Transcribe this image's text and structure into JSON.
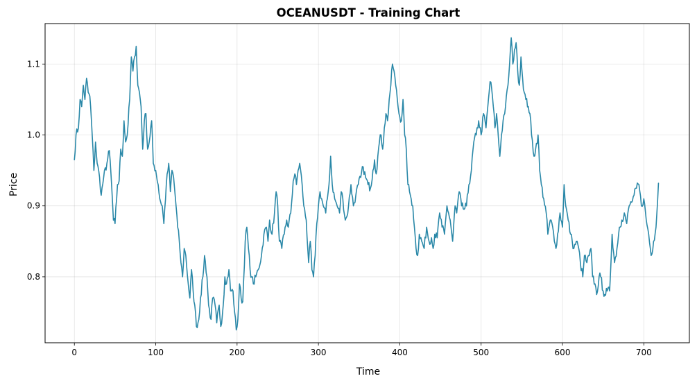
{
  "chart_data": {
    "type": "line",
    "title": "OCEANUSDT - Training Chart",
    "xlabel": "Time",
    "ylabel": "Price",
    "xlim": [
      -36,
      756
    ],
    "ylim": [
      0.707,
      1.157
    ],
    "xticks": [
      0,
      100,
      200,
      300,
      400,
      500,
      600,
      700
    ],
    "yticks": [
      0.8,
      0.9,
      1.0,
      1.1
    ],
    "ytick_labels": [
      "0.8",
      "0.9",
      "1.0",
      "1.1"
    ],
    "grid": true,
    "series": [
      {
        "color": "#2a88a8",
        "anchors": [
          [
            0,
            0.965
          ],
          [
            2,
            1.0
          ],
          [
            5,
            1.01
          ],
          [
            7,
            1.05
          ],
          [
            9,
            1.04
          ],
          [
            11,
            1.07
          ],
          [
            13,
            1.05
          ],
          [
            15,
            1.08
          ],
          [
            17,
            1.06
          ],
          [
            19,
            1.055
          ],
          [
            21,
            1.02
          ],
          [
            24,
            0.95
          ],
          [
            26,
            0.99
          ],
          [
            28,
            0.96
          ],
          [
            31,
            0.94
          ],
          [
            33,
            0.915
          ],
          [
            36,
            0.94
          ],
          [
            40,
            0.96
          ],
          [
            43,
            0.978
          ],
          [
            45,
            0.945
          ],
          [
            48,
            0.88
          ],
          [
            50,
            0.875
          ],
          [
            53,
            0.93
          ],
          [
            55,
            0.935
          ],
          [
            57,
            0.98
          ],
          [
            59,
            0.97
          ],
          [
            61,
            1.02
          ],
          [
            63,
            0.99
          ],
          [
            65,
            1.0
          ],
          [
            68,
            1.05
          ],
          [
            70,
            1.11
          ],
          [
            72,
            1.09
          ],
          [
            74,
            1.11
          ],
          [
            76,
            1.125
          ],
          [
            78,
            1.07
          ],
          [
            80,
            1.06
          ],
          [
            82,
            1.04
          ],
          [
            84,
            0.98
          ],
          [
            86,
            1.02
          ],
          [
            88,
            1.03
          ],
          [
            90,
            0.98
          ],
          [
            92,
            0.99
          ],
          [
            95,
            1.02
          ],
          [
            97,
            0.96
          ],
          [
            100,
            0.95
          ],
          [
            103,
            0.93
          ],
          [
            105,
            0.91
          ],
          [
            108,
            0.9
          ],
          [
            110,
            0.875
          ],
          [
            113,
            0.93
          ],
          [
            116,
            0.96
          ],
          [
            118,
            0.92
          ],
          [
            120,
            0.95
          ],
          [
            122,
            0.94
          ],
          [
            125,
            0.9
          ],
          [
            127,
            0.87
          ],
          [
            129,
            0.85
          ],
          [
            131,
            0.82
          ],
          [
            133,
            0.8
          ],
          [
            135,
            0.84
          ],
          [
            137,
            0.83
          ],
          [
            140,
            0.79
          ],
          [
            142,
            0.77
          ],
          [
            144,
            0.81
          ],
          [
            146,
            0.78
          ],
          [
            148,
            0.76
          ],
          [
            150,
            0.73
          ],
          [
            153,
            0.74
          ],
          [
            155,
            0.77
          ],
          [
            158,
            0.8
          ],
          [
            160,
            0.83
          ],
          [
            163,
            0.8
          ],
          [
            165,
            0.76
          ],
          [
            168,
            0.74
          ],
          [
            170,
            0.77
          ],
          [
            173,
            0.76
          ],
          [
            175,
            0.735
          ],
          [
            178,
            0.76
          ],
          [
            180,
            0.73
          ],
          [
            183,
            0.76
          ],
          [
            185,
            0.8
          ],
          [
            187,
            0.79
          ],
          [
            190,
            0.81
          ],
          [
            192,
            0.78
          ],
          [
            195,
            0.78
          ],
          [
            197,
            0.75
          ],
          [
            199,
            0.725
          ],
          [
            201,
            0.74
          ],
          [
            203,
            0.79
          ],
          [
            205,
            0.77
          ],
          [
            207,
            0.765
          ],
          [
            210,
            0.85
          ],
          [
            212,
            0.87
          ],
          [
            214,
            0.84
          ],
          [
            216,
            0.81
          ],
          [
            218,
            0.8
          ],
          [
            220,
            0.79
          ],
          [
            223,
            0.8
          ],
          [
            226,
            0.81
          ],
          [
            230,
            0.83
          ],
          [
            233,
            0.86
          ],
          [
            236,
            0.87
          ],
          [
            238,
            0.85
          ],
          [
            240,
            0.88
          ],
          [
            243,
            0.86
          ],
          [
            246,
            0.89
          ],
          [
            248,
            0.92
          ],
          [
            250,
            0.9
          ],
          [
            252,
            0.85
          ],
          [
            255,
            0.84
          ],
          [
            258,
            0.86
          ],
          [
            261,
            0.88
          ],
          [
            263,
            0.87
          ],
          [
            266,
            0.89
          ],
          [
            269,
            0.935
          ],
          [
            271,
            0.945
          ],
          [
            273,
            0.93
          ],
          [
            275,
            0.95
          ],
          [
            277,
            0.96
          ],
          [
            280,
            0.93
          ],
          [
            282,
            0.9
          ],
          [
            285,
            0.88
          ],
          [
            288,
            0.82
          ],
          [
            290,
            0.85
          ],
          [
            292,
            0.81
          ],
          [
            294,
            0.8
          ],
          [
            296,
            0.83
          ],
          [
            298,
            0.875
          ],
          [
            300,
            0.9
          ],
          [
            302,
            0.92
          ],
          [
            304,
            0.91
          ],
          [
            306,
            0.9
          ],
          [
            309,
            0.89
          ],
          [
            311,
            0.91
          ],
          [
            313,
            0.93
          ],
          [
            315,
            0.97
          ],
          [
            317,
            0.93
          ],
          [
            320,
            0.91
          ],
          [
            323,
            0.9
          ],
          [
            326,
            0.89
          ],
          [
            328,
            0.92
          ],
          [
            330,
            0.91
          ],
          [
            333,
            0.88
          ],
          [
            335,
            0.885
          ],
          [
            337,
            0.9
          ],
          [
            340,
            0.93
          ],
          [
            343,
            0.9
          ],
          [
            346,
            0.915
          ],
          [
            349,
            0.93
          ],
          [
            352,
            0.94
          ],
          [
            355,
            0.955
          ],
          [
            358,
            0.94
          ],
          [
            361,
            0.93
          ],
          [
            364,
            0.925
          ],
          [
            367,
            0.95
          ],
          [
            369,
            0.965
          ],
          [
            371,
            0.945
          ],
          [
            373,
            0.97
          ],
          [
            375,
            0.99
          ],
          [
            377,
            1.0
          ],
          [
            379,
            0.98
          ],
          [
            381,
            1.01
          ],
          [
            383,
            1.03
          ],
          [
            385,
            1.02
          ],
          [
            387,
            1.05
          ],
          [
            389,
            1.07
          ],
          [
            391,
            1.1
          ],
          [
            393,
            1.09
          ],
          [
            395,
            1.07
          ],
          [
            397,
            1.05
          ],
          [
            399,
            1.03
          ],
          [
            402,
            1.02
          ],
          [
            404,
            1.05
          ],
          [
            406,
            1.0
          ],
          [
            408,
            0.98
          ],
          [
            410,
            0.93
          ],
          [
            412,
            0.92
          ],
          [
            414,
            0.91
          ],
          [
            416,
            0.9
          ],
          [
            418,
            0.87
          ],
          [
            420,
            0.84
          ],
          [
            422,
            0.83
          ],
          [
            424,
            0.86
          ],
          [
            427,
            0.85
          ],
          [
            430,
            0.84
          ],
          [
            433,
            0.87
          ],
          [
            436,
            0.85
          ],
          [
            439,
            0.855
          ],
          [
            441,
            0.84
          ],
          [
            443,
            0.86
          ],
          [
            446,
            0.855
          ],
          [
            449,
            0.89
          ],
          [
            452,
            0.87
          ],
          [
            455,
            0.86
          ],
          [
            458,
            0.9
          ],
          [
            460,
            0.89
          ],
          [
            462,
            0.88
          ],
          [
            465,
            0.85
          ],
          [
            468,
            0.9
          ],
          [
            470,
            0.89
          ],
          [
            473,
            0.92
          ],
          [
            476,
            0.9
          ],
          [
            479,
            0.895
          ],
          [
            482,
            0.9
          ],
          [
            485,
            0.93
          ],
          [
            488,
            0.95
          ],
          [
            491,
            0.99
          ],
          [
            494,
            1.0
          ],
          [
            497,
            1.02
          ],
          [
            500,
            1.0
          ],
          [
            503,
            1.03
          ],
          [
            506,
            1.01
          ],
          [
            509,
            1.05
          ],
          [
            511,
            1.075
          ],
          [
            513,
            1.065
          ],
          [
            515,
            1.04
          ],
          [
            517,
            1.01
          ],
          [
            519,
            1.03
          ],
          [
            521,
            1.0
          ],
          [
            523,
            0.97
          ],
          [
            525,
            1.0
          ],
          [
            527,
            1.02
          ],
          [
            530,
            1.04
          ],
          [
            533,
            1.07
          ],
          [
            535,
            1.1
          ],
          [
            537,
            1.137
          ],
          [
            539,
            1.1
          ],
          [
            541,
            1.12
          ],
          [
            543,
            1.13
          ],
          [
            545,
            1.09
          ],
          [
            547,
            1.07
          ],
          [
            549,
            1.11
          ],
          [
            551,
            1.08
          ],
          [
            553,
            1.06
          ],
          [
            555,
            1.05
          ],
          [
            558,
            1.04
          ],
          [
            560,
            1.03
          ],
          [
            562,
            1.0
          ],
          [
            565,
            0.97
          ],
          [
            567,
            0.98
          ],
          [
            570,
            1.0
          ],
          [
            572,
            0.95
          ],
          [
            574,
            0.93
          ],
          [
            577,
            0.91
          ],
          [
            580,
            0.89
          ],
          [
            582,
            0.86
          ],
          [
            585,
            0.88
          ],
          [
            588,
            0.87
          ],
          [
            590,
            0.85
          ],
          [
            592,
            0.84
          ],
          [
            594,
            0.86
          ],
          [
            597,
            0.89
          ],
          [
            600,
            0.87
          ],
          [
            602,
            0.93
          ],
          [
            604,
            0.9
          ],
          [
            607,
            0.88
          ],
          [
            610,
            0.86
          ],
          [
            612,
            0.85
          ],
          [
            614,
            0.84
          ],
          [
            617,
            0.85
          ],
          [
            620,
            0.84
          ],
          [
            622,
            0.82
          ],
          [
            625,
            0.8
          ],
          [
            627,
            0.83
          ],
          [
            630,
            0.82
          ],
          [
            633,
            0.83
          ],
          [
            635,
            0.84
          ],
          [
            637,
            0.8
          ],
          [
            640,
            0.79
          ],
          [
            642,
            0.775
          ],
          [
            645,
            0.8
          ],
          [
            647,
            0.8
          ],
          [
            650,
            0.78
          ],
          [
            652,
            0.775
          ],
          [
            655,
            0.78
          ],
          [
            658,
            0.78
          ],
          [
            661,
            0.86
          ],
          [
            664,
            0.82
          ],
          [
            667,
            0.84
          ],
          [
            670,
            0.87
          ],
          [
            673,
            0.88
          ],
          [
            676,
            0.89
          ],
          [
            679,
            0.875
          ],
          [
            682,
            0.9
          ],
          [
            685,
            0.905
          ],
          [
            688,
            0.915
          ],
          [
            691,
            0.925
          ],
          [
            694,
            0.93
          ],
          [
            697,
            0.9
          ],
          [
            700,
            0.91
          ],
          [
            703,
            0.88
          ],
          [
            706,
            0.86
          ],
          [
            709,
            0.83
          ],
          [
            712,
            0.85
          ],
          [
            715,
            0.87
          ],
          [
            718,
            0.932
          ]
        ]
      }
    ]
  }
}
